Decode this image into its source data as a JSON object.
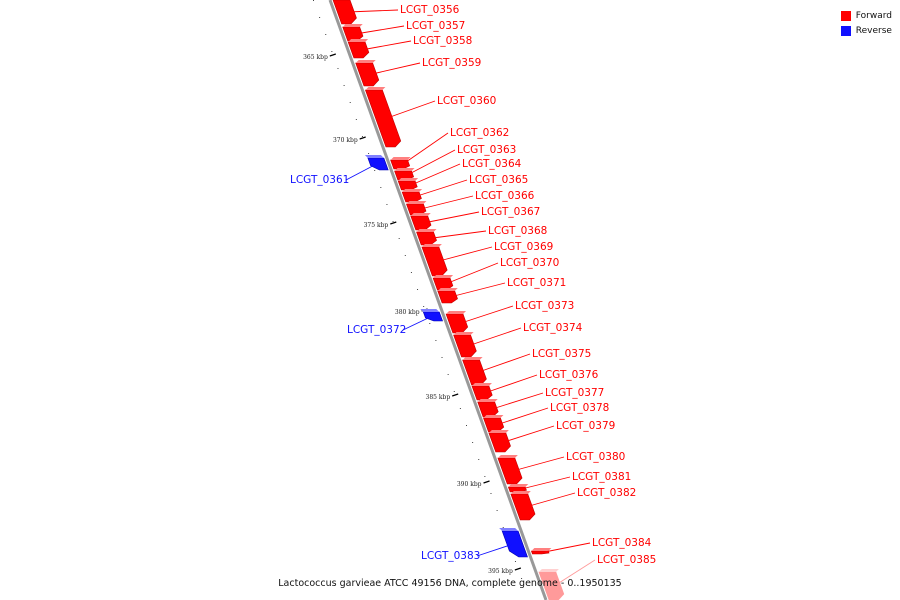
{
  "caption": "Lactococcus garvieae ATCC 49156 DNA, complete genome - 0..1950135",
  "colors": {
    "forward": "#ff0000",
    "reverse": "#1010ff",
    "backbone": "#999999",
    "forward_faded": "#ff9a9a"
  },
  "legend": [
    {
      "label": "Forward",
      "strand": "forward"
    },
    {
      "label": "Reverse",
      "strand": "reverse"
    }
  ],
  "ticks": [
    "365 kbp",
    "370 kbp",
    "375 kbp",
    "380 kbp",
    "385 kbp",
    "390 kbp",
    "395 kbp"
  ],
  "genes": [
    {
      "id": "LCGT_0356",
      "strand": "forward"
    },
    {
      "id": "LCGT_0357",
      "strand": "forward"
    },
    {
      "id": "LCGT_0358",
      "strand": "forward"
    },
    {
      "id": "LCGT_0359",
      "strand": "forward"
    },
    {
      "id": "LCGT_0360",
      "strand": "forward"
    },
    {
      "id": "LCGT_0361",
      "strand": "reverse"
    },
    {
      "id": "LCGT_0362",
      "strand": "forward"
    },
    {
      "id": "LCGT_0363",
      "strand": "forward"
    },
    {
      "id": "LCGT_0364",
      "strand": "forward"
    },
    {
      "id": "LCGT_0365",
      "strand": "forward"
    },
    {
      "id": "LCGT_0366",
      "strand": "forward"
    },
    {
      "id": "LCGT_0367",
      "strand": "forward"
    },
    {
      "id": "LCGT_0368",
      "strand": "forward"
    },
    {
      "id": "LCGT_0369",
      "strand": "forward"
    },
    {
      "id": "LCGT_0370",
      "strand": "forward"
    },
    {
      "id": "LCGT_0371",
      "strand": "forward"
    },
    {
      "id": "LCGT_0372",
      "strand": "reverse"
    },
    {
      "id": "LCGT_0373",
      "strand": "forward"
    },
    {
      "id": "LCGT_0374",
      "strand": "forward"
    },
    {
      "id": "LCGT_0375",
      "strand": "forward"
    },
    {
      "id": "LCGT_0376",
      "strand": "forward"
    },
    {
      "id": "LCGT_0377",
      "strand": "forward"
    },
    {
      "id": "LCGT_0378",
      "strand": "forward"
    },
    {
      "id": "LCGT_0379",
      "strand": "forward"
    },
    {
      "id": "LCGT_0380",
      "strand": "forward"
    },
    {
      "id": "LCGT_0381",
      "strand": "forward"
    },
    {
      "id": "LCGT_0382",
      "strand": "forward"
    },
    {
      "id": "LCGT_0383",
      "strand": "reverse"
    },
    {
      "id": "LCGT_0384",
      "strand": "forward"
    },
    {
      "id": "LCGT_0385",
      "strand": "forward"
    }
  ]
}
